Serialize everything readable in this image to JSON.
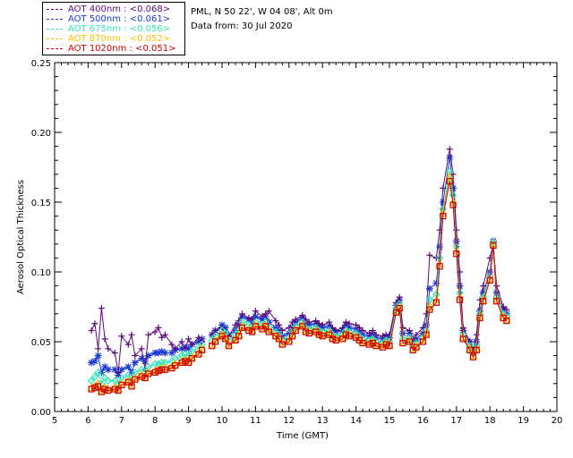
{
  "station": {
    "line1": "PML, N 50 22', W 04 08', Alt 0m",
    "line2": "Data from: 30 Jul 2020"
  },
  "legend": [
    {
      "text": "AOT  400nm : <0.068>",
      "color": "#5a0a78"
    },
    {
      "text": "AOT  500nm : <0.061>",
      "color": "#1c3bd6"
    },
    {
      "text": "AOT  675nm : <0.056>",
      "color": "#2ee6b8"
    },
    {
      "text": "AOT  870nm : <0.052>",
      "color": "#ffc000"
    },
    {
      "text": "AOT 1020nm : <0.051>",
      "color": "#cc0000"
    }
  ],
  "chart_data": {
    "type": "line",
    "xlabel": "Time (GMT)",
    "ylabel": "Aerosol Optical Thickness",
    "xlim": [
      5,
      20
    ],
    "ylim": [
      0,
      0.25
    ],
    "xticks": [
      "5",
      "6",
      "7",
      "8",
      "9",
      "10",
      "11",
      "12",
      "13",
      "14",
      "15",
      "16",
      "17",
      "18",
      "19",
      "20"
    ],
    "yticks": [
      "0.00",
      "0.05",
      "0.10",
      "0.15",
      "0.20",
      "0.25"
    ],
    "x": [
      6.1,
      6.2,
      6.3,
      6.4,
      6.5,
      6.6,
      6.8,
      6.9,
      7.0,
      7.2,
      7.3,
      7.4,
      7.6,
      7.7,
      7.8,
      8.0,
      8.1,
      8.2,
      8.3,
      8.5,
      8.6,
      8.8,
      8.9,
      9.0,
      9.1,
      9.3,
      9.4,
      9.7,
      9.8,
      10.0,
      10.1,
      10.2,
      10.4,
      10.5,
      10.6,
      10.8,
      10.9,
      11.0,
      11.2,
      11.3,
      11.4,
      11.6,
      11.7,
      11.8,
      12.0,
      12.1,
      12.2,
      12.4,
      12.5,
      12.6,
      12.8,
      12.9,
      13.0,
      13.2,
      13.3,
      13.4,
      13.6,
      13.7,
      13.8,
      14.0,
      14.1,
      14.2,
      14.4,
      14.5,
      14.6,
      14.8,
      14.9,
      15.0,
      15.2,
      15.3,
      15.4,
      15.6,
      15.7,
      15.8,
      16.0,
      16.1,
      16.2,
      16.4,
      16.5,
      16.6,
      16.8,
      16.9,
      17.0,
      17.1,
      17.2,
      17.4,
      17.5,
      17.6,
      17.7,
      17.8,
      18.0,
      18.1,
      18.2,
      18.4,
      18.5
    ],
    "series": [
      {
        "name": "AOT  400nm",
        "color": "#5a0a78",
        "marker": "plus",
        "values": [
          0.058,
          0.063,
          0.045,
          0.074,
          0.052,
          0.045,
          0.042,
          0.028,
          0.054,
          0.048,
          0.055,
          0.04,
          0.045,
          0.03,
          0.055,
          0.057,
          0.06,
          0.053,
          0.055,
          0.048,
          0.045,
          0.05,
          0.045,
          0.052,
          0.048,
          0.053,
          0.05,
          0.055,
          0.058,
          0.06,
          0.055,
          0.054,
          0.062,
          0.065,
          0.07,
          0.067,
          0.066,
          0.072,
          0.068,
          0.07,
          0.072,
          0.065,
          0.062,
          0.058,
          0.06,
          0.064,
          0.066,
          0.069,
          0.066,
          0.064,
          0.065,
          0.063,
          0.062,
          0.064,
          0.06,
          0.058,
          0.06,
          0.064,
          0.063,
          0.062,
          0.06,
          0.058,
          0.056,
          0.058,
          0.055,
          0.054,
          0.055,
          0.055,
          0.078,
          0.082,
          0.06,
          0.058,
          0.052,
          0.055,
          0.06,
          0.07,
          0.112,
          0.11,
          0.13,
          0.16,
          0.188,
          0.17,
          0.13,
          0.1,
          0.06,
          0.05,
          0.045,
          0.055,
          0.08,
          0.09,
          0.11,
          0.12,
          0.09,
          0.075,
          0.073
        ]
      },
      {
        "name": "AOT  500nm",
        "color": "#1c3bd6",
        "marker": "star",
        "values": [
          0.035,
          0.036,
          0.04,
          0.028,
          0.032,
          0.03,
          0.03,
          0.026,
          0.03,
          0.032,
          0.028,
          0.035,
          0.038,
          0.036,
          0.04,
          0.042,
          0.042,
          0.043,
          0.042,
          0.042,
          0.044,
          0.045,
          0.046,
          0.045,
          0.048,
          0.05,
          0.052,
          0.055,
          0.058,
          0.062,
          0.06,
          0.055,
          0.058,
          0.062,
          0.068,
          0.066,
          0.064,
          0.068,
          0.066,
          0.068,
          0.064,
          0.06,
          0.058,
          0.054,
          0.056,
          0.06,
          0.064,
          0.067,
          0.063,
          0.062,
          0.063,
          0.061,
          0.06,
          0.061,
          0.058,
          0.057,
          0.058,
          0.062,
          0.06,
          0.059,
          0.057,
          0.055,
          0.054,
          0.055,
          0.053,
          0.052,
          0.054,
          0.053,
          0.076,
          0.08,
          0.056,
          0.056,
          0.05,
          0.052,
          0.056,
          0.062,
          0.088,
          0.092,
          0.118,
          0.15,
          0.182,
          0.16,
          0.122,
          0.09,
          0.058,
          0.05,
          0.043,
          0.05,
          0.072,
          0.085,
          0.1,
          0.122,
          0.085,
          0.073,
          0.07
        ]
      },
      {
        "name": "AOT  675nm",
        "color": "#2ee6b8",
        "marker": "diamond",
        "values": [
          0.022,
          0.025,
          0.028,
          0.02,
          0.024,
          0.022,
          0.022,
          0.02,
          0.024,
          0.026,
          0.022,
          0.028,
          0.03,
          0.028,
          0.032,
          0.034,
          0.034,
          0.035,
          0.035,
          0.036,
          0.038,
          0.04,
          0.041,
          0.04,
          0.043,
          0.046,
          0.048,
          0.051,
          0.054,
          0.058,
          0.056,
          0.051,
          0.055,
          0.058,
          0.064,
          0.062,
          0.06,
          0.064,
          0.062,
          0.064,
          0.06,
          0.057,
          0.055,
          0.051,
          0.053,
          0.057,
          0.061,
          0.064,
          0.06,
          0.059,
          0.06,
          0.058,
          0.057,
          0.058,
          0.055,
          0.054,
          0.055,
          0.058,
          0.057,
          0.056,
          0.054,
          0.052,
          0.051,
          0.052,
          0.05,
          0.049,
          0.051,
          0.05,
          0.074,
          0.077,
          0.052,
          0.053,
          0.047,
          0.049,
          0.053,
          0.058,
          0.08,
          0.084,
          0.11,
          0.145,
          0.172,
          0.155,
          0.118,
          0.085,
          0.055,
          0.047,
          0.042,
          0.047,
          0.07,
          0.082,
          0.097,
          0.121,
          0.082,
          0.07,
          0.068
        ]
      },
      {
        "name": "AOT  870nm",
        "color": "#ffc000",
        "marker": "triangle",
        "values": [
          0.017,
          0.018,
          0.02,
          0.015,
          0.017,
          0.016,
          0.017,
          0.016,
          0.02,
          0.022,
          0.019,
          0.024,
          0.026,
          0.025,
          0.028,
          0.029,
          0.03,
          0.031,
          0.031,
          0.032,
          0.034,
          0.036,
          0.037,
          0.036,
          0.039,
          0.042,
          0.045,
          0.048,
          0.051,
          0.055,
          0.053,
          0.048,
          0.052,
          0.055,
          0.061,
          0.059,
          0.058,
          0.062,
          0.06,
          0.062,
          0.058,
          0.055,
          0.053,
          0.049,
          0.051,
          0.055,
          0.059,
          0.062,
          0.058,
          0.057,
          0.058,
          0.056,
          0.055,
          0.056,
          0.053,
          0.052,
          0.053,
          0.056,
          0.055,
          0.054,
          0.052,
          0.05,
          0.049,
          0.05,
          0.048,
          0.047,
          0.049,
          0.048,
          0.072,
          0.075,
          0.05,
          0.051,
          0.045,
          0.047,
          0.051,
          0.056,
          0.075,
          0.08,
          0.106,
          0.142,
          0.168,
          0.15,
          0.115,
          0.082,
          0.053,
          0.045,
          0.04,
          0.045,
          0.068,
          0.08,
          0.095,
          0.12,
          0.08,
          0.068,
          0.066
        ]
      },
      {
        "name": "AOT 1020nm",
        "color": "#cc0000",
        "marker": "square",
        "values": [
          0.016,
          0.017,
          0.018,
          0.014,
          0.016,
          0.015,
          0.016,
          0.015,
          0.019,
          0.021,
          0.018,
          0.023,
          0.025,
          0.024,
          0.027,
          0.028,
          0.029,
          0.03,
          0.03,
          0.031,
          0.033,
          0.035,
          0.036,
          0.035,
          0.038,
          0.041,
          0.044,
          0.047,
          0.05,
          0.054,
          0.052,
          0.047,
          0.051,
          0.054,
          0.06,
          0.058,
          0.057,
          0.061,
          0.059,
          0.061,
          0.057,
          0.054,
          0.052,
          0.048,
          0.05,
          0.054,
          0.058,
          0.061,
          0.057,
          0.056,
          0.057,
          0.055,
          0.054,
          0.055,
          0.052,
          0.051,
          0.052,
          0.055,
          0.054,
          0.053,
          0.051,
          0.049,
          0.048,
          0.049,
          0.047,
          0.046,
          0.048,
          0.047,
          0.071,
          0.074,
          0.049,
          0.05,
          0.044,
          0.046,
          0.05,
          0.055,
          0.073,
          0.078,
          0.104,
          0.14,
          0.165,
          0.148,
          0.113,
          0.08,
          0.052,
          0.044,
          0.039,
          0.044,
          0.067,
          0.079,
          0.094,
          0.119,
          0.079,
          0.067,
          0.065
        ]
      }
    ]
  }
}
